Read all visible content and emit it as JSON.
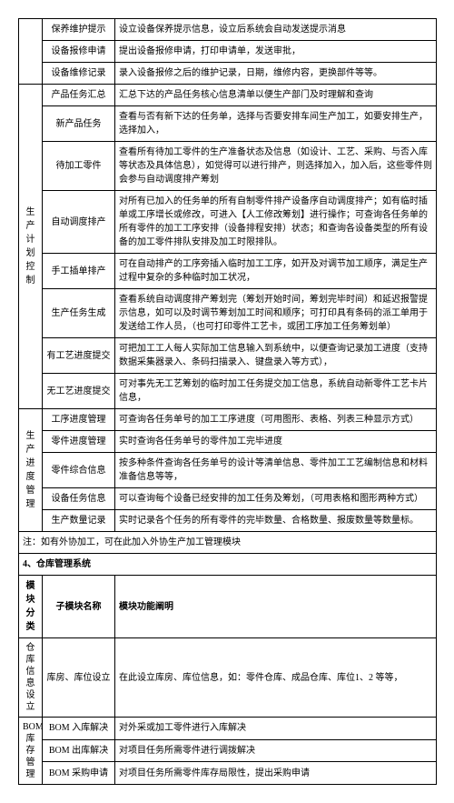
{
  "rows": [
    {
      "sub": "保养维护提示",
      "desc": "设立设备保养提示信息，设立后系统会自动发送提示消息"
    },
    {
      "sub": "设备报修申请",
      "desc": "提出设备报修申请，打印申请单，发送审批，"
    },
    {
      "sub": "设备维修记录",
      "desc": "录入设备报修之后的维护记录，日期，维修内容，更换部件等等。"
    }
  ],
  "cat1": "生产计划控制",
  "cat1rows": [
    {
      "sub": "产品任务汇总",
      "desc": "汇总下达的产品任务核心信息清单以便生产部门及时理解和查询"
    },
    {
      "sub": "新产品任务",
      "desc": "查看与否有新下达的任务单，选择与否要安排车间生产加工，如要安排生产，选择加入，"
    },
    {
      "sub": "待加工零件",
      "desc": "查看所有待加工零件的生产准备状态及信息（如设计、工艺、采购、与否入库等状态及具体信息），如觉得可以进行排产，则选择加入，加入后，这些零件则会参与自动调度排产筹划"
    },
    {
      "sub": "自动调度排产",
      "desc": "对所有已加入的任务单的所有自制零件排产设备序自动调度排产；如有临时插单或工序增长或修改，可进入【人工修改筹划】进行操作；可查询各任务单的所有零件的加工工序安排（设备排程安排）状态；和查询各设备类型的所有设备的加工零件排队安排及加工时限排队。"
    },
    {
      "sub": "手工插单排产",
      "desc": "可在自动排产的工序旁插入临时加工工序，如开及对调节加工顺序，满足生产过程中复杂的多种临时加工状况，"
    },
    {
      "sub": "生产任务生成",
      "desc": "查看系统自动调度排产筹划完（筹划开始时间，筹划完毕时间）和延迟报警提示信息，如可以及时调节筹划加工时间和顺序；可打印具有条码的派工单用于发送给工作人员，（也可打印零件工艺卡，或团工序加工任务筹划单）"
    },
    {
      "sub": "有工艺进度提交",
      "desc": "可把加工工人每人实际加工信息输入到系统中，以便查询记录加工进度（支持数据采集器录入、条码扫描录入、键盘录入等方式），"
    },
    {
      "sub": "无工艺进度提交",
      "desc": "可对事先无工艺筹划的临时加工任务提交加工信息，系统自动新零件工艺卡片信息，"
    }
  ],
  "cat2": "生产进度管理",
  "cat2rows": [
    {
      "sub": "工序进度管理",
      "desc": "可查询各任务单号的加工工序进度（可用图形、表格、列表三种显示方式）"
    },
    {
      "sub": "零件进度管理",
      "desc": "实时查询各任务单号的零件加工完毕进度"
    },
    {
      "sub": "零件综合信息",
      "desc": "按多种条件查询各任务单号的设计等清单信息、零件加工工艺编制信息和材料准备信息等等，"
    },
    {
      "sub": "设备任务信息",
      "desc": "可以查询每个设备已经安排的加工任务及筹划，（可用表格和图形两种方式）"
    },
    {
      "sub": "生产数量记录",
      "desc": "实时记录各个任务的所有零件的完毕数量、合格数量、报废数量等数量标。"
    }
  ],
  "note": "注：如有外协加工，可在此加入外协生产加工管理模块",
  "section4": "4、仓库管理系统",
  "headers": {
    "c1": "模块分类",
    "c2": "子模块名称",
    "c3": "模块功能阐明"
  },
  "cat3": "仓库信息设立",
  "cat3rows": [
    {
      "sub": "库房、库位设立",
      "desc": "在此设立库房、库位信息，如：零件仓库、成品仓库、库位1、2 等等，"
    }
  ],
  "cat4": "BOM库存管理",
  "cat4rows": [
    {
      "sub": "BOM 入库解决",
      "desc": "对外采或加工零件进行入库解决"
    },
    {
      "sub": "BOM 出库解决",
      "desc": "对项目任务所需零件进行调拨解决"
    },
    {
      "sub": "BOM 采购申请",
      "desc": "对项目任务所需零件库存局限性，提出采购申请"
    }
  ]
}
